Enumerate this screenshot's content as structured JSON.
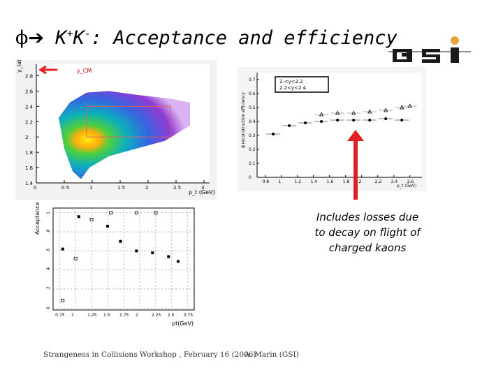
{
  "title": {
    "symbol": "ϕ",
    "arrow": "➔",
    "kaons": "K",
    "kplus": "+",
    "kminus": "-",
    "rest": ": Acceptance and efficiency"
  },
  "logo": {
    "text": "GSI",
    "accent": "#e8a23a",
    "color": "#1a1a1a"
  },
  "colors": {
    "arrow": "#e02020",
    "accent": "#cc0000"
  },
  "note": {
    "line1": "Includes losses due",
    "line2": "to  decay on flight of",
    "line3": "charged kaons"
  },
  "footer": {
    "left": "Strangeness in Collisions Workshop , February 16 (2006)",
    "right": "A. Marin (GSI)"
  },
  "chart_data": [
    {
      "type": "heatmap",
      "ylabel": "y_lab",
      "xlabel": "p_t (GeV)",
      "annotation": "y_CM",
      "x_ticks": [
        "0",
        "0.5",
        "1",
        "1.5",
        "2",
        "2.5",
        "3"
      ],
      "y_ticks": [
        "1.4",
        "1.6",
        "1.8",
        "2",
        "2.2",
        "2.4",
        "2.6",
        "2.8"
      ],
      "xlim": [
        0,
        3.1
      ],
      "ylim": [
        1.4,
        2.95
      ],
      "box": {
        "x": [
          0.9,
          2.4
        ],
        "y": [
          2.0,
          2.4
        ]
      },
      "grid": false
    },
    {
      "type": "scatter",
      "ylabel": "ϕ reconstruction efficiency",
      "xlabel": "p_t (GeV)",
      "x_ticks": [
        "0.8",
        "1",
        "1.2",
        "1.4",
        "1.6",
        "1.8",
        "2",
        "2.2",
        "2.4",
        "2.6"
      ],
      "y_ticks": [
        "0",
        "0.1",
        "0.2",
        "0.3",
        "0.4",
        "0.5",
        "0.6",
        "0.7"
      ],
      "xlim": [
        0.7,
        2.75
      ],
      "ylim": [
        0,
        0.75
      ],
      "legend": [
        "2.<y<2.2",
        "2.2<y<2.4"
      ],
      "legend_position": "top-left",
      "series": [
        {
          "name": "2.<y<2.2",
          "x": [
            0.9,
            1.1,
            1.3,
            1.5,
            1.7,
            1.9,
            2.1,
            2.3,
            2.5
          ],
          "y": [
            0.31,
            0.37,
            0.39,
            0.4,
            0.41,
            0.41,
            0.41,
            0.42,
            0.41
          ]
        },
        {
          "name": "2.2<y<2.4",
          "x": [
            1.5,
            1.7,
            1.9,
            2.1,
            2.3,
            2.5,
            2.6
          ],
          "y": [
            0.45,
            0.46,
            0.46,
            0.47,
            0.48,
            0.5,
            0.51
          ]
        }
      ]
    },
    {
      "type": "scatter",
      "ylabel": "Acceptance",
      "xlabel": "pt(GeV)",
      "x_ticks": [
        "0.75",
        "1",
        "1.25",
        "1.5",
        "1.75",
        "2",
        "2.25",
        "2.5",
        "2.75"
      ],
      "y_ticks": [
        "0",
        ".2",
        ".4",
        ".6",
        ".8",
        "1"
      ],
      "xlim": [
        0.65,
        2.85
      ],
      "ylim": [
        -0.02,
        1.05
      ],
      "grid": true,
      "series": [
        {
          "name": "filled",
          "x": [
            0.8,
            1.05,
            1.5,
            1.7,
            1.95,
            2.2,
            2.45,
            2.6
          ],
          "y": [
            0.62,
            0.96,
            0.86,
            0.7,
            0.6,
            0.58,
            0.54,
            0.49
          ]
        },
        {
          "name": "open",
          "x": [
            0.8,
            1.0,
            1.25,
            1.55,
            1.95,
            2.25
          ],
          "y": [
            0.08,
            0.52,
            0.93,
            1.0,
            1.0,
            1.0
          ]
        }
      ]
    }
  ]
}
